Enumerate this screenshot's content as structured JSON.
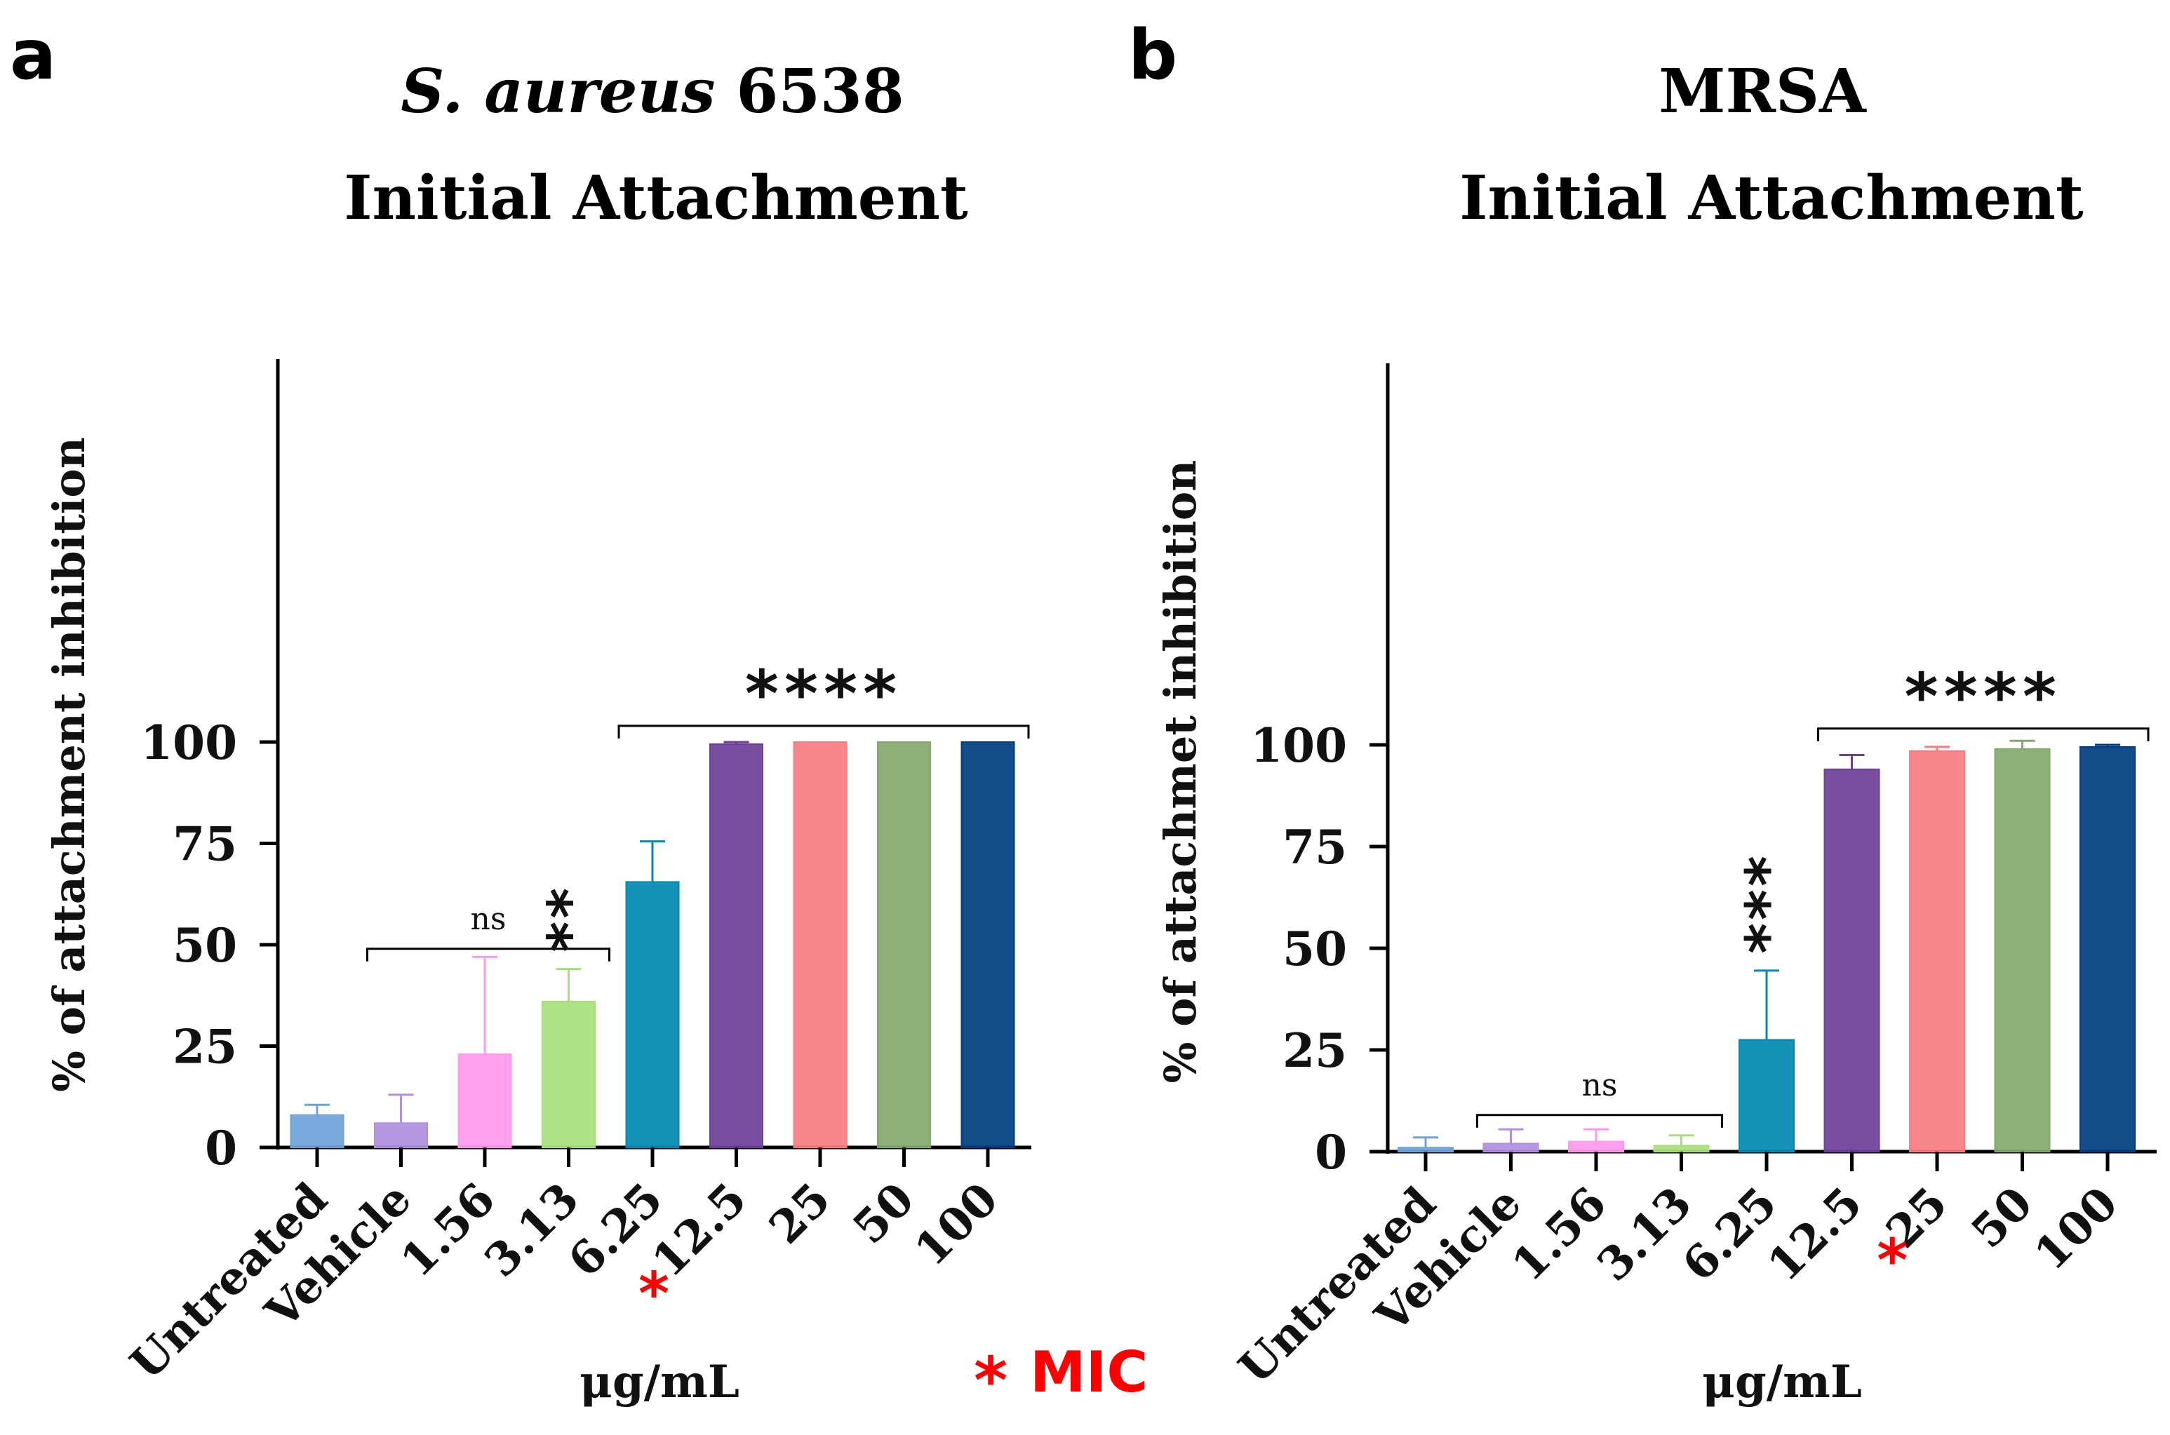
{
  "panels": [
    {
      "letter": "a",
      "title_italic": "S. aureus",
      "title_rest": " 6538",
      "title_line2": "Initial Attachment"
    },
    {
      "letter": "b",
      "title_italic": "",
      "title_rest": "MRSA",
      "title_line2": "Initial Attachment"
    }
  ],
  "legend": {
    "star": "*",
    "text": "MIC"
  },
  "colors": {
    "Untreated": "#6fa3d8",
    "Vehicle": "#b08ee0",
    "1.56": "#ff99ee",
    "3.13": "#a8df7a",
    "6.25": "#0089b2",
    "12.5": "#6e3f98",
    "25": "#f87c80",
    "50": "#82a96b",
    "100": "#003c7f",
    "mic": "#ff0000"
  },
  "chart_data": [
    {
      "type": "bar",
      "title": "S. aureus 6538 Initial Attachment",
      "ylabel": "% of attachment inhibition",
      "xlabel": "μg/mL",
      "ylim": [
        0,
        100
      ],
      "yticks": [
        "0",
        "25",
        "50",
        "75",
        "100"
      ],
      "categories": [
        "Untreated",
        "Vehicle",
        "1.56",
        "3.13",
        "6.25",
        "12.5",
        "25",
        "50",
        "100"
      ],
      "values": [
        8,
        6,
        23,
        36,
        65.5,
        99.5,
        100,
        100,
        100
      ],
      "errors": [
        2.5,
        7,
        24,
        8,
        10,
        0.5,
        0,
        0,
        0
      ],
      "mic_category": "12.5",
      "annotations": [
        {
          "text": "ns",
          "from": "Vehicle",
          "to": "3.13",
          "y": 49
        },
        {
          "text": "**",
          "at": "3.13"
        },
        {
          "text": "****",
          "from": "6.25",
          "to": "100",
          "y": 104
        }
      ]
    },
    {
      "type": "bar",
      "title": "MRSA Initial Attachment",
      "ylabel": "% of attachmet inhibition",
      "xlabel": "μg/mL",
      "ylim": [
        0,
        100
      ],
      "yticks": [
        "0",
        "25",
        "50",
        "75",
        "100"
      ],
      "categories": [
        "Untreated",
        "Vehicle",
        "1.56",
        "3.13",
        "6.25",
        "12.5",
        "25",
        "50",
        "100"
      ],
      "values": [
        1,
        2,
        2.5,
        1.5,
        27.5,
        94,
        98.5,
        99,
        99.5
      ],
      "errors": [
        2.5,
        3.5,
        3,
        2.5,
        17,
        3.5,
        1,
        2,
        0.5
      ],
      "mic_category": "25",
      "annotations": [
        {
          "text": "ns",
          "from": "Vehicle",
          "to": "3.13",
          "y": 9
        },
        {
          "text": "***",
          "at": "6.25"
        },
        {
          "text": "****",
          "from": "12.5",
          "to": "100",
          "y": 104
        }
      ]
    }
  ]
}
